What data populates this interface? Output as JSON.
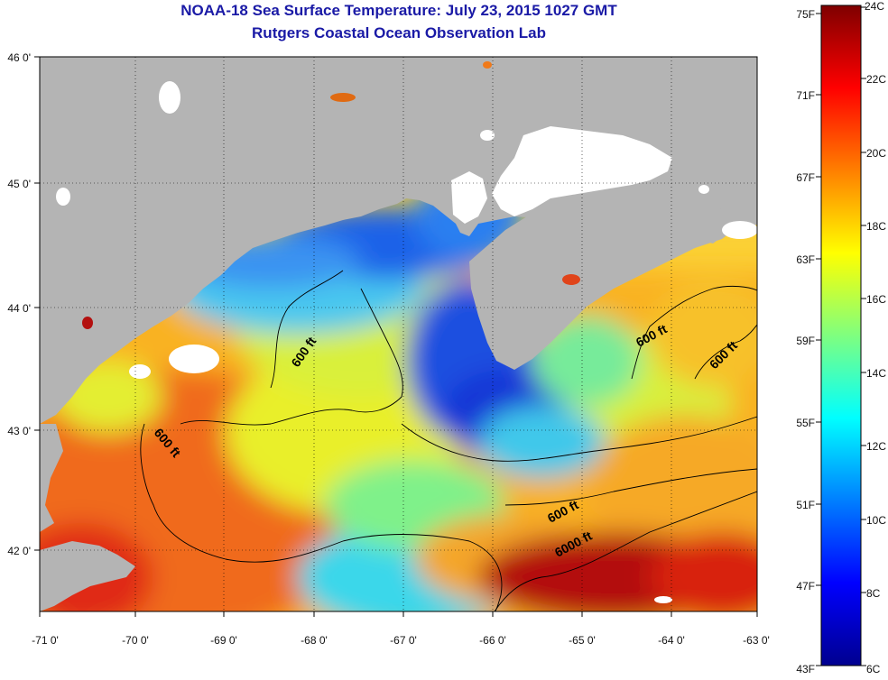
{
  "title": "NOAA-18 Sea Surface Temperature:  July 23, 2015 1027 GMT",
  "subtitle": "Rutgers Coastal Ocean Observation Lab",
  "map": {
    "lon_ticks": [
      "-71 0'",
      "-70 0'",
      "-69 0'",
      "-68 0'",
      "-67 0'",
      "-66 0'",
      "-65 0'",
      "-64 0'",
      "-63 0'"
    ],
    "lat_ticks": [
      "46 0'",
      "45 0'",
      "44 0'",
      "43 0'",
      "42 0'"
    ],
    "contour_labels": [
      "600 ft",
      "600 ft",
      "600 ft",
      "600 ft",
      "600 ft",
      "6000 ft"
    ],
    "land_color": "#b4b4b4",
    "cloud_color": "#ffffff"
  },
  "colorbar": {
    "fahrenheit_labels": [
      "75F",
      "71F",
      "67F",
      "63F",
      "59F",
      "55F",
      "51F",
      "47F",
      "43F"
    ],
    "celsius_labels": [
      "24C",
      "22C",
      "20C",
      "18C",
      "16C",
      "14C",
      "12C",
      "10C",
      "8C",
      "6C"
    ],
    "range_celsius": [
      6,
      24
    ],
    "colors": [
      "#00008f",
      "#0000ff",
      "#007fff",
      "#00ffff",
      "#7fff7f",
      "#ffff00",
      "#ff7f00",
      "#ff0000",
      "#7f0000"
    ]
  }
}
